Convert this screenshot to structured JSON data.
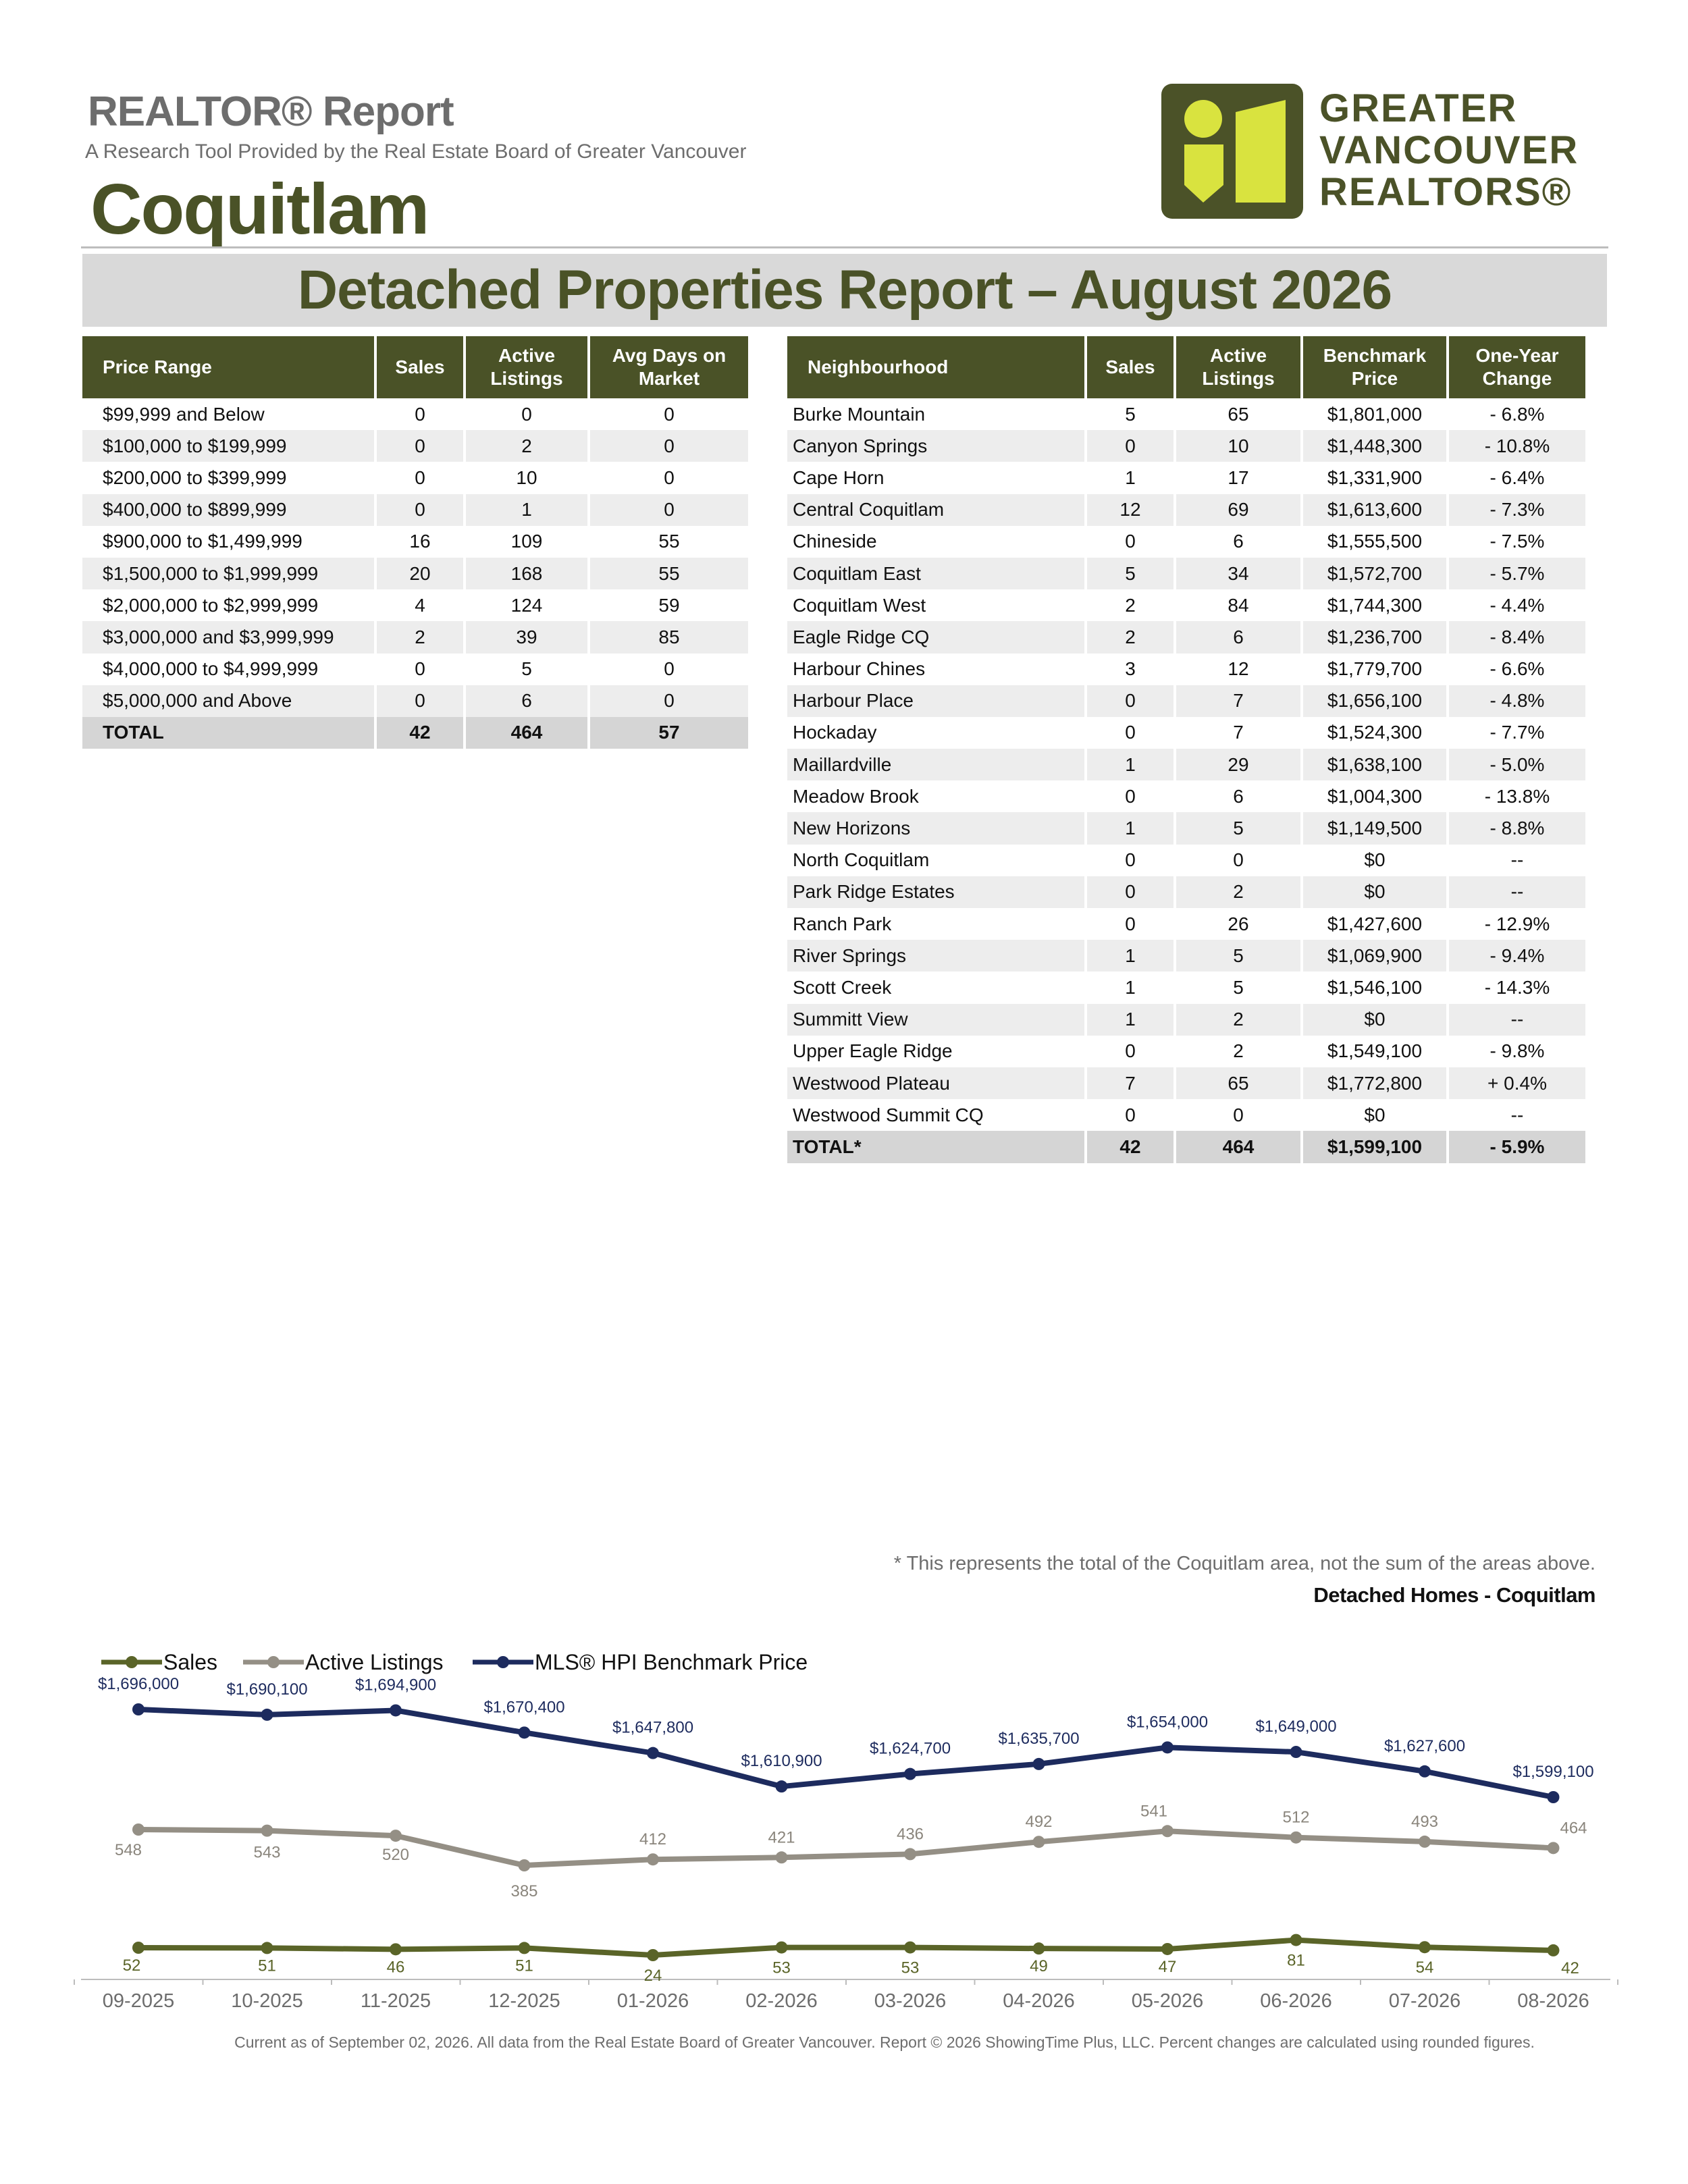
{
  "header": {
    "report_title": "REALTOR® Report",
    "subtitle": "A Research Tool Provided by the Real Estate Board of Greater Vancouver",
    "area": "Coquitlam",
    "logo_lines": [
      "GREATER",
      "VANCOUVER",
      "REALTORS®"
    ]
  },
  "report_heading": "Detached Properties Report – August 2026",
  "price_table": {
    "columns": [
      "Price Range",
      "Sales",
      "Active Listings",
      "Avg Days on Market"
    ],
    "rows": [
      [
        "$99,999 and Below",
        "0",
        "0",
        "0"
      ],
      [
        "$100,000 to $199,999",
        "0",
        "2",
        "0"
      ],
      [
        "$200,000 to $399,999",
        "0",
        "10",
        "0"
      ],
      [
        "$400,000 to $899,999",
        "0",
        "1",
        "0"
      ],
      [
        "$900,000 to $1,499,999",
        "16",
        "109",
        "55"
      ],
      [
        "$1,500,000 to $1,999,999",
        "20",
        "168",
        "55"
      ],
      [
        "$2,000,000 to $2,999,999",
        "4",
        "124",
        "59"
      ],
      [
        "$3,000,000 and $3,999,999",
        "2",
        "39",
        "85"
      ],
      [
        "$4,000,000 to $4,999,999",
        "0",
        "5",
        "0"
      ],
      [
        "$5,000,000 and Above",
        "0",
        "6",
        "0"
      ]
    ],
    "total": [
      "TOTAL",
      "42",
      "464",
      "57"
    ]
  },
  "neighbourhood_table": {
    "columns": [
      "Neighbourhood",
      "Sales",
      "Active Listings",
      "Benchmark Price",
      "One-Year Change"
    ],
    "rows": [
      [
        "Burke Mountain",
        "5",
        "65",
        "$1,801,000",
        "- 6.8%"
      ],
      [
        "Canyon Springs",
        "0",
        "10",
        "$1,448,300",
        "- 10.8%"
      ],
      [
        "Cape Horn",
        "1",
        "17",
        "$1,331,900",
        "- 6.4%"
      ],
      [
        "Central Coquitlam",
        "12",
        "69",
        "$1,613,600",
        "- 7.3%"
      ],
      [
        "Chineside",
        "0",
        "6",
        "$1,555,500",
        "- 7.5%"
      ],
      [
        "Coquitlam East",
        "5",
        "34",
        "$1,572,700",
        "- 5.7%"
      ],
      [
        "Coquitlam West",
        "2",
        "84",
        "$1,744,300",
        "- 4.4%"
      ],
      [
        "Eagle Ridge CQ",
        "2",
        "6",
        "$1,236,700",
        "- 8.4%"
      ],
      [
        "Harbour Chines",
        "3",
        "12",
        "$1,779,700",
        "- 6.6%"
      ],
      [
        "Harbour Place",
        "0",
        "7",
        "$1,656,100",
        "- 4.8%"
      ],
      [
        "Hockaday",
        "0",
        "7",
        "$1,524,300",
        "- 7.7%"
      ],
      [
        "Maillardville",
        "1",
        "29",
        "$1,638,100",
        "- 5.0%"
      ],
      [
        "Meadow Brook",
        "0",
        "6",
        "$1,004,300",
        "- 13.8%"
      ],
      [
        "New Horizons",
        "1",
        "5",
        "$1,149,500",
        "- 8.8%"
      ],
      [
        "North Coquitlam",
        "0",
        "0",
        "$0",
        "--"
      ],
      [
        "Park Ridge Estates",
        "0",
        "2",
        "$0",
        "--"
      ],
      [
        "Ranch Park",
        "0",
        "26",
        "$1,427,600",
        "- 12.9%"
      ],
      [
        "River Springs",
        "1",
        "5",
        "$1,069,900",
        "- 9.4%"
      ],
      [
        "Scott Creek",
        "1",
        "5",
        "$1,546,100",
        "- 14.3%"
      ],
      [
        "Summitt View",
        "1",
        "2",
        "$0",
        "--"
      ],
      [
        "Upper Eagle Ridge",
        "0",
        "2",
        "$1,549,100",
        "- 9.8%"
      ],
      [
        "Westwood Plateau",
        "7",
        "65",
        "$1,772,800",
        "+ 0.4%"
      ],
      [
        "Westwood Summit CQ",
        "0",
        "0",
        "$0",
        "--"
      ]
    ],
    "total": [
      "TOTAL*",
      "42",
      "464",
      "$1,599,100",
      "- 5.9%"
    ]
  },
  "footnote": "* This represents the total of the Coquitlam area, not the sum of the areas above.",
  "chart_title": "Detached Homes - Coquitlam",
  "chart_data": {
    "type": "line",
    "title": "Detached Homes - Coquitlam",
    "categories": [
      "09-2025",
      "10-2025",
      "11-2025",
      "12-2025",
      "01-2026",
      "02-2026",
      "03-2026",
      "04-2026",
      "05-2026",
      "06-2026",
      "07-2026",
      "08-2026"
    ],
    "legend_position": "top-left",
    "series": [
      {
        "name": "Sales",
        "color": "#5a6428",
        "values": [
          52,
          51,
          46,
          51,
          24,
          53,
          53,
          49,
          47,
          81,
          54,
          42
        ]
      },
      {
        "name": "Active Listings",
        "color": "#948f85",
        "values": [
          548,
          543,
          520,
          385,
          412,
          421,
          436,
          492,
          541,
          512,
          493,
          464
        ]
      },
      {
        "name": "MLS® HPI Benchmark Price",
        "color": "#1d2b5e",
        "values": [
          1696000,
          1690100,
          1694900,
          1670400,
          1647800,
          1610900,
          1624700,
          1635700,
          1654000,
          1649000,
          1627600,
          1599100
        ],
        "labels": [
          "$1,696,000",
          "$1,690,100",
          "$1,694,900",
          "$1,670,400",
          "$1,647,800",
          "$1,610,900",
          "$1,624,700",
          "$1,635,700",
          "$1,654,000",
          "$1,649,000",
          "$1,627,600",
          "$1,599,100"
        ]
      }
    ]
  },
  "footer": "Current as of September 02, 2026. All data from the Real Estate Board of Greater Vancouver.  Report © 2026 ShowingTime Plus, LLC. Percent changes are calculated using rounded figures."
}
